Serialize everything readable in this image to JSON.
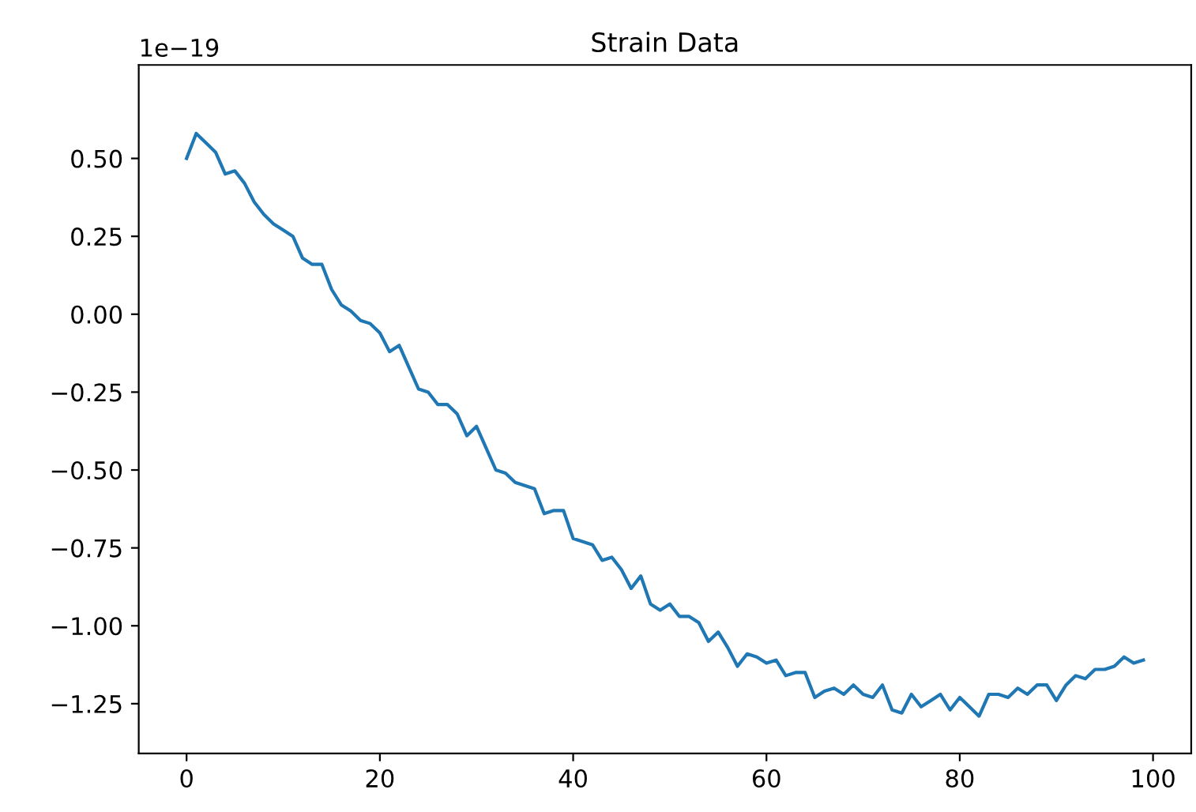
{
  "chart_data": {
    "type": "line",
    "title": "Strain Data",
    "annotations": [
      "1e−19"
    ],
    "x": [
      0,
      1,
      2,
      3,
      4,
      5,
      6,
      7,
      8,
      9,
      10,
      11,
      12,
      13,
      14,
      15,
      16,
      17,
      18,
      19,
      20,
      21,
      22,
      23,
      24,
      25,
      26,
      27,
      28,
      29,
      30,
      31,
      32,
      33,
      34,
      35,
      36,
      37,
      38,
      39,
      40,
      41,
      42,
      43,
      44,
      45,
      46,
      47,
      48,
      49,
      50,
      51,
      52,
      53,
      54,
      55,
      56,
      57,
      58,
      59,
      60,
      61,
      62,
      63,
      64,
      65,
      66,
      67,
      68,
      69,
      70,
      71,
      72,
      73,
      74,
      75,
      76,
      77,
      78,
      79,
      80,
      81,
      82,
      83,
      84,
      85,
      86,
      87,
      88,
      89,
      90,
      91,
      92,
      93,
      94,
      95,
      96,
      97,
      98,
      99
    ],
    "series": [
      {
        "color": "#1f77b4",
        "values": [
          0.5,
          0.58,
          0.55,
          0.52,
          0.45,
          0.46,
          0.42,
          0.36,
          0.32,
          0.29,
          0.27,
          0.25,
          0.18,
          0.16,
          0.16,
          0.08,
          0.03,
          0.01,
          -0.02,
          -0.03,
          -0.06,
          -0.12,
          -0.1,
          -0.17,
          -0.24,
          -0.25,
          -0.29,
          -0.29,
          -0.32,
          -0.39,
          -0.36,
          -0.43,
          -0.5,
          -0.51,
          -0.54,
          -0.55,
          -0.56,
          -0.64,
          -0.63,
          -0.63,
          -0.72,
          -0.73,
          -0.74,
          -0.79,
          -0.78,
          -0.82,
          -0.88,
          -0.84,
          -0.93,
          -0.95,
          -0.93,
          -0.97,
          -0.97,
          -0.99,
          -1.05,
          -1.02,
          -1.07,
          -1.13,
          -1.09,
          -1.1,
          -1.12,
          -1.11,
          -1.16,
          -1.15,
          -1.15,
          -1.23,
          -1.21,
          -1.2,
          -1.22,
          -1.19,
          -1.22,
          -1.23,
          -1.19,
          -1.27,
          -1.28,
          -1.22,
          -1.26,
          -1.24,
          -1.22,
          -1.27,
          -1.23,
          -1.26,
          -1.29,
          -1.22,
          -1.22,
          -1.23,
          -1.2,
          -1.22,
          -1.19,
          -1.19,
          -1.24,
          -1.19,
          -1.16,
          -1.17,
          -1.14,
          -1.14,
          -1.13,
          -1.1,
          -1.12,
          -1.11
        ]
      }
    ],
    "xlim": [
      -4.95,
      103.95
    ],
    "xticks": [
      0,
      20,
      40,
      60,
      80,
      100
    ],
    "ylim": [
      -1.41,
      0.8
    ],
    "yticks": [
      {
        "value": -1.25,
        "label": "−1.25"
      },
      {
        "value": -1.0,
        "label": "−1.00"
      },
      {
        "value": -0.75,
        "label": "−0.75"
      },
      {
        "value": -0.5,
        "label": "−0.50"
      },
      {
        "value": -0.25,
        "label": "−0.25"
      },
      {
        "value": 0.0,
        "label": "0.00"
      },
      {
        "value": 0.25,
        "label": "0.25"
      },
      {
        "value": 0.5,
        "label": "0.50"
      }
    ],
    "grid": false,
    "marker": "none",
    "line_style": "solid"
  }
}
